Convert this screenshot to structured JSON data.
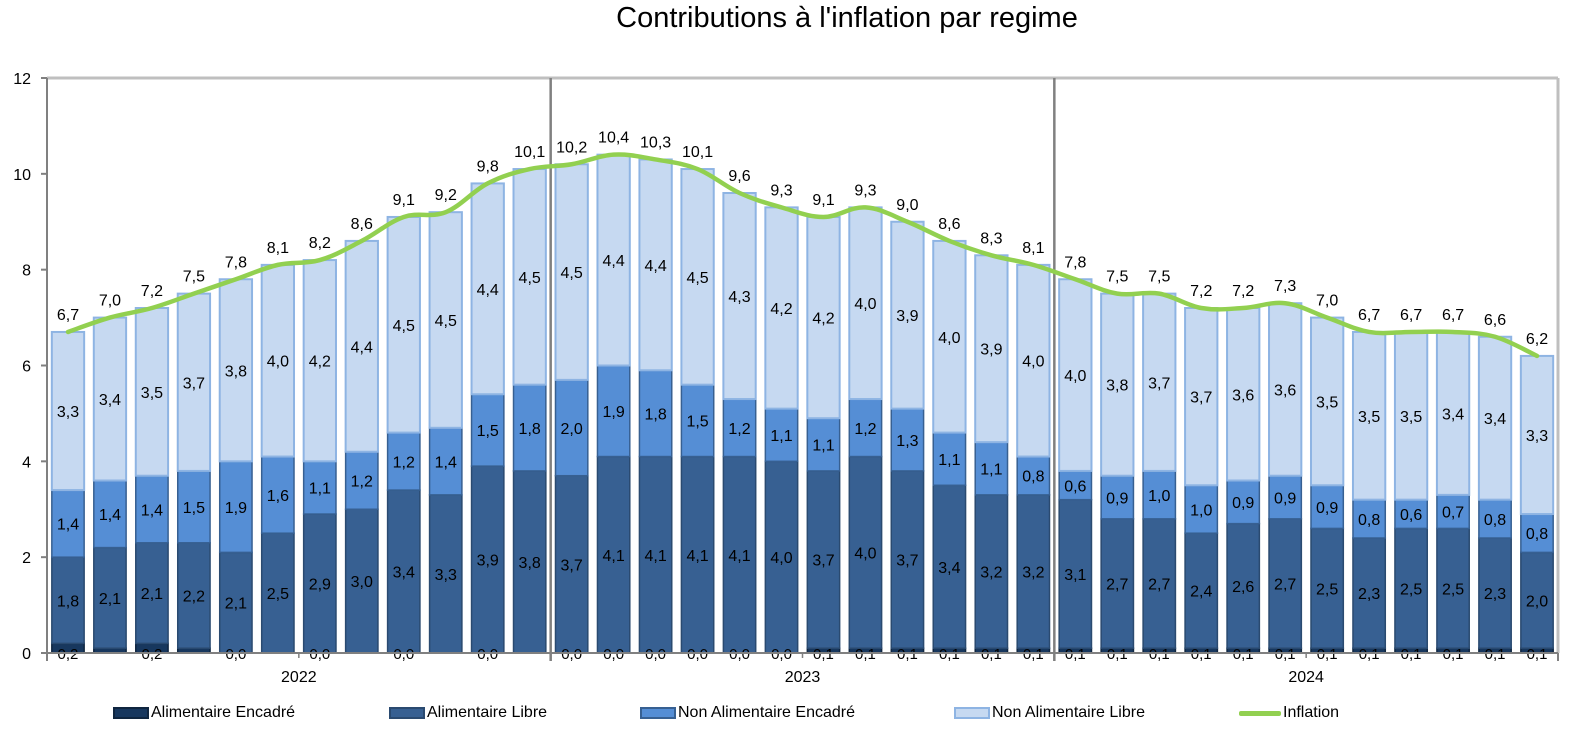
{
  "chart_data": {
    "type": "bar",
    "stacked": true,
    "title": "Contributions à l'inflation par regime",
    "xlabel": "",
    "ylabel": "",
    "ylim": [
      0,
      12
    ],
    "yticks": [
      0,
      2,
      4,
      6,
      8,
      10,
      12
    ],
    "ytick_labels": [
      "0",
      "2",
      "4",
      "6",
      "8",
      "10",
      "12"
    ],
    "grid": false,
    "legend_position": "bottom",
    "year_groups": [
      {
        "label": "2022",
        "months": 12
      },
      {
        "label": "2023",
        "months": 12
      },
      {
        "label": "2024",
        "months": 12
      }
    ],
    "series": [
      {
        "name": "Alimentaire Encadré",
        "kind": "bar",
        "color": "#17375E",
        "values": [
          0.2,
          0.1,
          0.2,
          0.1,
          0.0,
          0.0,
          0.0,
          0.0,
          0.0,
          0.0,
          0.0,
          0.0,
          0.0,
          0.0,
          0.0,
          0.0,
          0.0,
          0.0,
          0.1,
          0.1,
          0.1,
          0.1,
          0.1,
          0.1,
          0.1,
          0.1,
          0.1,
          0.1,
          0.1,
          0.1,
          0.1,
          0.1,
          0.1,
          0.1,
          0.1,
          0.1
        ],
        "labels": [
          "0,2",
          "",
          "0,2",
          "",
          "0,0",
          "",
          "0,0",
          "",
          "0,0",
          "",
          "0,0",
          "",
          "0,0",
          "0,0",
          "0,0",
          "0,0",
          "0,0",
          "0,0",
          "0,1",
          "0,1",
          "0,1",
          "0,1",
          "0,1",
          "0,1",
          "0,1",
          "0,1",
          "0,1",
          "0,1",
          "0,1",
          "0,1",
          "0,1",
          "0,1",
          "0,1",
          "0,1",
          "0,1",
          "0,1"
        ]
      },
      {
        "name": "Alimentaire Libre",
        "kind": "bar",
        "color": "#376092",
        "values": [
          1.8,
          2.1,
          2.1,
          2.2,
          2.1,
          2.5,
          2.9,
          3.0,
          3.4,
          3.3,
          3.9,
          3.8,
          3.7,
          4.1,
          4.1,
          4.1,
          4.1,
          4.0,
          3.7,
          4.0,
          3.7,
          3.4,
          3.2,
          3.2,
          3.1,
          2.7,
          2.7,
          2.4,
          2.6,
          2.7,
          2.5,
          2.3,
          2.5,
          2.5,
          2.3,
          2.0
        ]
      },
      {
        "name": "Non Alimentaire Encadré",
        "kind": "bar",
        "color": "#558ED5",
        "values": [
          1.4,
          1.4,
          1.4,
          1.5,
          1.9,
          1.6,
          1.1,
          1.2,
          1.2,
          1.4,
          1.5,
          1.8,
          2.0,
          1.9,
          1.8,
          1.5,
          1.2,
          1.1,
          1.1,
          1.2,
          1.3,
          1.1,
          1.1,
          0.8,
          0.6,
          0.9,
          1.0,
          1.0,
          0.9,
          0.9,
          0.9,
          0.8,
          0.6,
          0.7,
          0.8,
          0.8
        ]
      },
      {
        "name": "Non Alimentaire Libre",
        "kind": "bar",
        "color": "#C6D9F1",
        "values": [
          3.3,
          3.4,
          3.5,
          3.7,
          3.8,
          4.0,
          4.2,
          4.4,
          4.5,
          4.5,
          4.4,
          4.5,
          4.5,
          4.4,
          4.4,
          4.5,
          4.3,
          4.2,
          4.2,
          4.0,
          3.9,
          4.0,
          3.9,
          4.0,
          4.0,
          3.8,
          3.7,
          3.7,
          3.6,
          3.6,
          3.5,
          3.5,
          3.5,
          3.4,
          3.4,
          3.3
        ]
      },
      {
        "name": "Inflation",
        "kind": "line",
        "color": "#92D050",
        "values": [
          6.7,
          7.0,
          7.2,
          7.5,
          7.8,
          8.1,
          8.2,
          8.6,
          9.1,
          9.2,
          9.8,
          10.1,
          10.2,
          10.4,
          10.3,
          10.1,
          9.6,
          9.3,
          9.1,
          9.3,
          9.0,
          8.6,
          8.3,
          8.1,
          7.8,
          7.5,
          7.5,
          7.2,
          7.2,
          7.3,
          7.0,
          6.7,
          6.7,
          6.7,
          6.6,
          6.2
        ]
      }
    ]
  },
  "legend": {
    "items": [
      {
        "label": "Alimentaire Encadré",
        "color": "#17375E",
        "border": "#0F253F"
      },
      {
        "label": "Alimentaire Libre",
        "color": "#376092",
        "border": "#2A4A70"
      },
      {
        "label": "Non Alimentaire Encadré",
        "color": "#558ED5",
        "border": "#376092"
      },
      {
        "label": "Non Alimentaire Libre",
        "color": "#C6D9F1",
        "border": "#8EB4E3"
      },
      {
        "label": "Inflation",
        "color": "#92D050"
      }
    ]
  }
}
